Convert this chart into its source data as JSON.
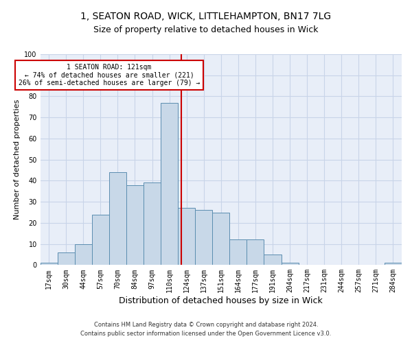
{
  "title1": "1, SEATON ROAD, WICK, LITTLEHAMPTON, BN17 7LG",
  "title2": "Size of property relative to detached houses in Wick",
  "xlabel": "Distribution of detached houses by size in Wick",
  "ylabel": "Number of detached properties",
  "bin_labels": [
    "17sqm",
    "30sqm",
    "44sqm",
    "57sqm",
    "70sqm",
    "84sqm",
    "97sqm",
    "110sqm",
    "124sqm",
    "137sqm",
    "151sqm",
    "164sqm",
    "177sqm",
    "191sqm",
    "204sqm",
    "217sqm",
    "231sqm",
    "244sqm",
    "257sqm",
    "271sqm",
    "284sqm"
  ],
  "bar_heights": [
    1,
    6,
    10,
    24,
    44,
    38,
    39,
    77,
    27,
    26,
    25,
    12,
    12,
    5,
    1,
    0,
    0,
    0,
    0,
    0,
    1
  ],
  "bar_color": "#c8d8e8",
  "bar_edge_color": "#5b8db0",
  "vline_x_index": 7.69,
  "vline_color": "#cc0000",
  "annotation_text": "1 SEATON ROAD: 121sqm\n← 74% of detached houses are smaller (221)\n26% of semi-detached houses are larger (79) →",
  "annotation_box_color": "#ffffff",
  "annotation_box_edge_color": "#cc0000",
  "ylim": [
    0,
    100
  ],
  "yticks": [
    0,
    10,
    20,
    30,
    40,
    50,
    60,
    70,
    80,
    90,
    100
  ],
  "grid_color": "#c8d4e8",
  "background_color": "#e8eef8",
  "footer1": "Contains HM Land Registry data © Crown copyright and database right 2024.",
  "footer2": "Contains public sector information licensed under the Open Government Licence v3.0.",
  "title1_fontsize": 10,
  "title2_fontsize": 9,
  "xlabel_fontsize": 9,
  "ylabel_fontsize": 8,
  "tick_fontsize": 7,
  "footer_fontsize": 6
}
